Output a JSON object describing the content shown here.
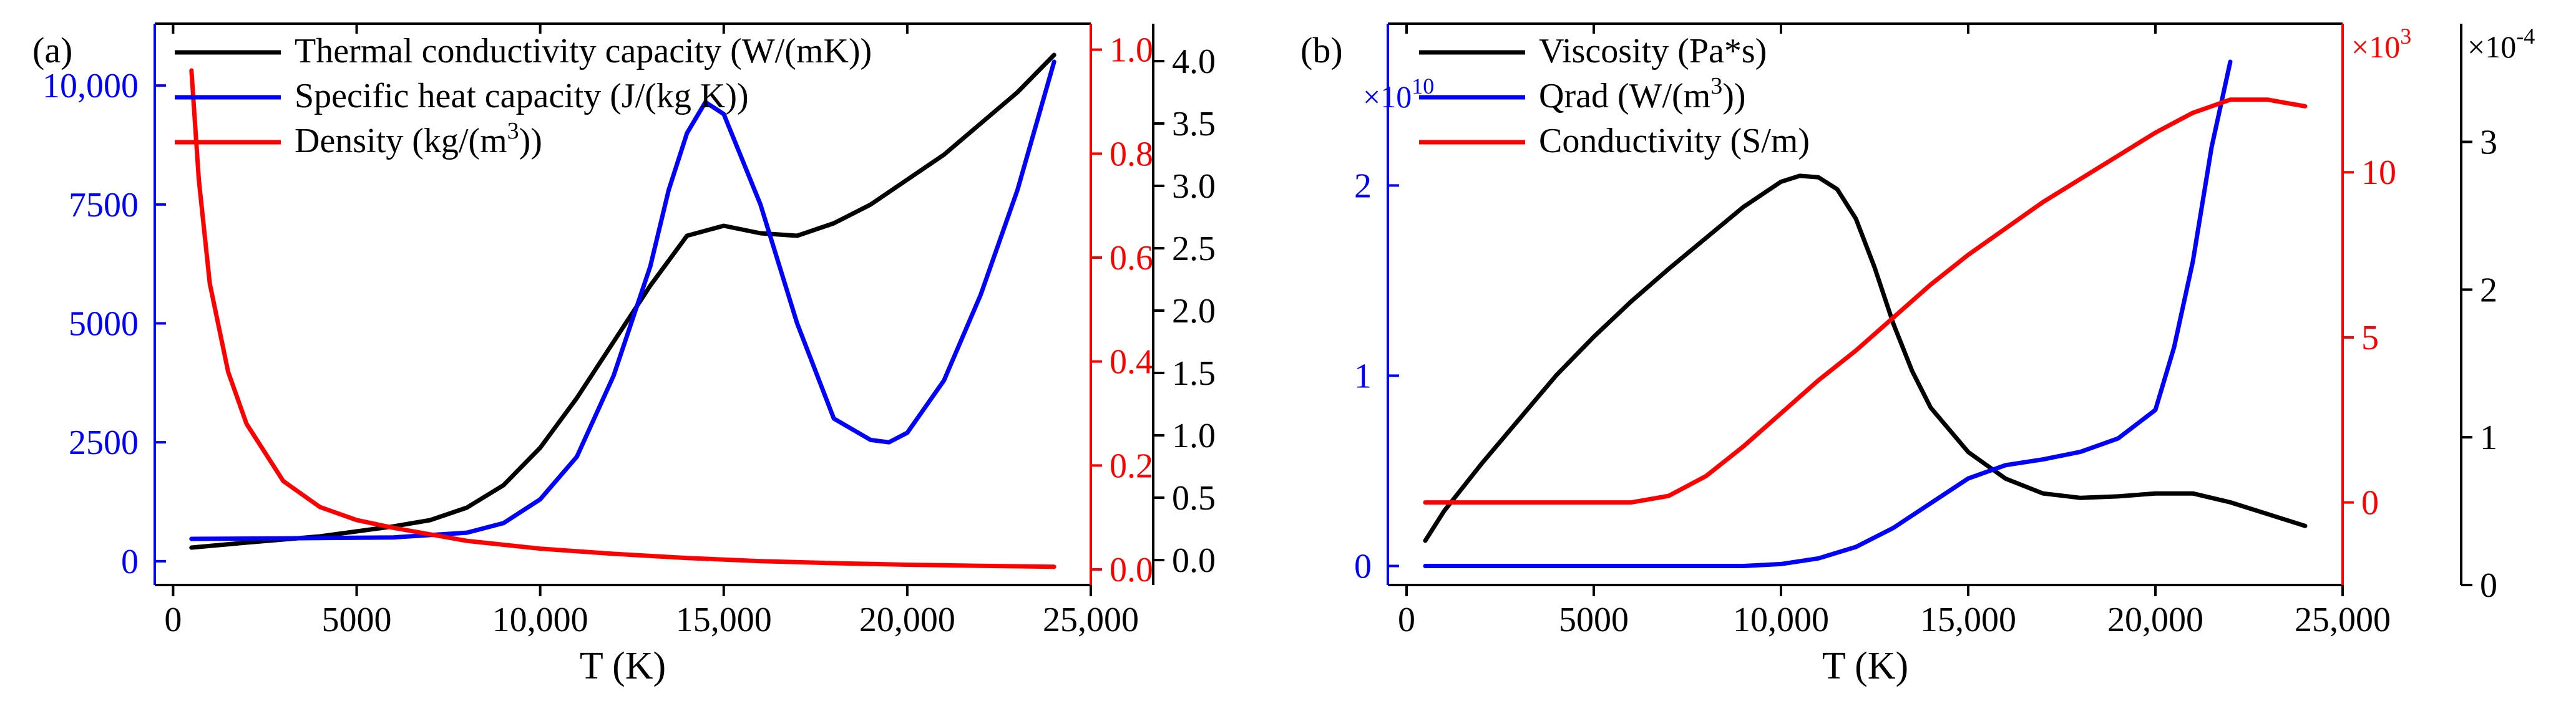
{
  "chart_data": [
    {
      "type": "line",
      "panel_label": "(a)",
      "xlabel": "T (K)",
      "xlim": [
        -500,
        25000
      ],
      "x_ticks": [
        0,
        5000,
        10000,
        15000,
        20000,
        25000
      ],
      "x_tick_labels": [
        "0",
        "5000",
        "10,000",
        "15,000",
        "20,000",
        "25,000"
      ],
      "legend_location": "top-left",
      "axes": [
        {
          "id": "left",
          "color": "#0000ff",
          "ylim": [
            -500,
            11300
          ],
          "ticks": [
            0,
            2500,
            5000,
            7500,
            10000
          ],
          "tick_labels": [
            "0",
            "2500",
            "5000",
            "7500",
            "10,000"
          ]
        },
        {
          "id": "right1",
          "color": "#ff0000",
          "ylim": [
            -0.03,
            1.05
          ],
          "ticks": [
            0.0,
            0.2,
            0.4,
            0.6,
            0.8,
            1.0
          ],
          "tick_labels": [
            "0.0",
            "0.2",
            "0.4",
            "0.6",
            "0.8",
            "1.0"
          ]
        },
        {
          "id": "right2",
          "color": "#000000",
          "ylim": [
            -0.2,
            4.3
          ],
          "ticks": [
            0.0,
            0.5,
            1.0,
            1.5,
            2.0,
            2.5,
            3.0,
            3.5,
            4.0
          ],
          "tick_labels": [
            "0.0",
            "0.5",
            "1.0",
            "1.5",
            "2.0",
            "2.5",
            "3.0",
            "3.5",
            "4.0"
          ]
        }
      ],
      "series": [
        {
          "name": "Thermal conductivity capacity (W/(mK))",
          "legend_main": "Thermal conductivity capacity (W/(mK))",
          "legend_sup": "",
          "legend_tail": "",
          "color": "#000000",
          "axis": "right2",
          "x": [
            500,
            2000,
            4000,
            6000,
            7000,
            8000,
            9000,
            10000,
            11000,
            12000,
            13000,
            14000,
            15000,
            16000,
            17000,
            18000,
            19000,
            20000,
            21000,
            22000,
            23000,
            24000
          ],
          "y": [
            0.1,
            0.14,
            0.19,
            0.27,
            0.32,
            0.42,
            0.6,
            0.9,
            1.3,
            1.75,
            2.2,
            2.6,
            2.68,
            2.62,
            2.6,
            2.7,
            2.85,
            3.05,
            3.25,
            3.5,
            3.75,
            4.05
          ]
        },
        {
          "name": "Specific heat capacity (J/(kg K))",
          "legend_main": "Specific heat capacity (J/(kg K))",
          "legend_sup": "",
          "legend_tail": "",
          "color": "#0000ff",
          "axis": "left",
          "x": [
            500,
            3000,
            6000,
            8000,
            9000,
            10000,
            11000,
            12000,
            13000,
            13500,
            14000,
            14500,
            15000,
            16000,
            17000,
            18000,
            19000,
            19500,
            20000,
            21000,
            22000,
            23000,
            24000
          ],
          "y": [
            470,
            480,
            500,
            600,
            800,
            1300,
            2200,
            3900,
            6200,
            7800,
            9000,
            9650,
            9400,
            7500,
            5000,
            3000,
            2550,
            2500,
            2700,
            3800,
            5600,
            7800,
            10500
          ]
        },
        {
          "name": "Density (kg/(m3))",
          "legend_main": "Density (kg/(m",
          "legend_sup": "3",
          "legend_tail": "))",
          "color": "#ff0000",
          "axis": "right1",
          "x": [
            500,
            700,
            1000,
            1500,
            2000,
            3000,
            4000,
            5000,
            6000,
            8000,
            10000,
            12000,
            14000,
            16000,
            18000,
            20000,
            22000,
            24000
          ],
          "y": [
            0.96,
            0.75,
            0.55,
            0.38,
            0.28,
            0.17,
            0.12,
            0.095,
            0.08,
            0.055,
            0.04,
            0.03,
            0.022,
            0.016,
            0.012,
            0.009,
            0.007,
            0.005
          ]
        }
      ]
    },
    {
      "type": "line",
      "panel_label": "(b)",
      "xlabel": "T (K)",
      "xlim": [
        -500,
        25000
      ],
      "x_ticks": [
        0,
        5000,
        10000,
        15000,
        20000,
        25000
      ],
      "x_tick_labels": [
        "0",
        "5000",
        "10,000",
        "15,000",
        "20,000",
        "25,000"
      ],
      "legend_location": "top-left",
      "axes": [
        {
          "id": "left",
          "color": "#0000ff",
          "ylim": [
            -0.1,
            2.85
          ],
          "ticks": [
            0,
            1,
            2
          ],
          "tick_labels": [
            "0",
            "1",
            "2"
          ],
          "multiplier_base": "×10",
          "multiplier_exp": "10"
        },
        {
          "id": "right1",
          "color": "#ff0000",
          "ylim": [
            -2.5,
            14.5
          ],
          "ticks": [
            0,
            5,
            10
          ],
          "tick_labels": [
            "0",
            "5",
            "10"
          ],
          "multiplier_base": "×10",
          "multiplier_exp": "3"
        },
        {
          "id": "right2",
          "color": "#000000",
          "ylim": [
            0,
            3.8
          ],
          "ticks": [
            0,
            1,
            2,
            3
          ],
          "tick_labels": [
            "0",
            "1",
            "2",
            "3"
          ],
          "multiplier_base": "×10",
          "multiplier_exp": "-4"
        }
      ],
      "series": [
        {
          "name": "Viscosity (Pa*s)",
          "legend_main": "Viscosity (Pa*s)",
          "legend_sup": "",
          "legend_tail": "",
          "color": "#000000",
          "axis": "right2",
          "x": [
            500,
            1000,
            2000,
            3000,
            4000,
            5000,
            6000,
            7000,
            8000,
            9000,
            10000,
            10500,
            11000,
            11500,
            12000,
            12500,
            13000,
            13500,
            14000,
            15000,
            16000,
            17000,
            18000,
            19000,
            20000,
            21000,
            22000,
            23000,
            24000
          ],
          "y": [
            0.3,
            0.5,
            0.82,
            1.12,
            1.42,
            1.68,
            1.92,
            2.14,
            2.35,
            2.56,
            2.73,
            2.77,
            2.76,
            2.68,
            2.48,
            2.15,
            1.77,
            1.45,
            1.2,
            0.9,
            0.72,
            0.62,
            0.59,
            0.6,
            0.62,
            0.62,
            0.56,
            0.48,
            0.4
          ]
        },
        {
          "name": "Qrad (W/(m3))",
          "legend_main": "Qrad (W/(m",
          "legend_sup": "3",
          "legend_tail": "))",
          "color": "#0000ff",
          "axis": "left",
          "x": [
            500,
            5000,
            9000,
            10000,
            11000,
            12000,
            13000,
            14000,
            15000,
            16000,
            17000,
            18000,
            19000,
            20000,
            20500,
            21000,
            21500,
            22000
          ],
          "y": [
            0.0,
            0.0,
            0.0,
            0.01,
            0.04,
            0.1,
            0.2,
            0.33,
            0.46,
            0.53,
            0.56,
            0.6,
            0.67,
            0.82,
            1.15,
            1.6,
            2.2,
            2.65
          ]
        },
        {
          "name": "Conductivity (S/m)",
          "legend_main": "Conductivity (S/m)",
          "legend_sup": "",
          "legend_tail": "",
          "color": "#ff0000",
          "axis": "right1",
          "x": [
            500,
            2000,
            4000,
            6000,
            7000,
            8000,
            9000,
            10000,
            11000,
            12000,
            13000,
            14000,
            15000,
            16000,
            17000,
            18000,
            19000,
            20000,
            21000,
            22000,
            23000,
            24000
          ],
          "y": [
            0.0,
            0.0,
            0.0,
            0.0,
            0.2,
            0.8,
            1.7,
            2.7,
            3.7,
            4.6,
            5.6,
            6.6,
            7.5,
            8.3,
            9.1,
            9.8,
            10.5,
            11.2,
            11.8,
            12.2,
            12.2,
            12.0
          ]
        }
      ]
    }
  ]
}
